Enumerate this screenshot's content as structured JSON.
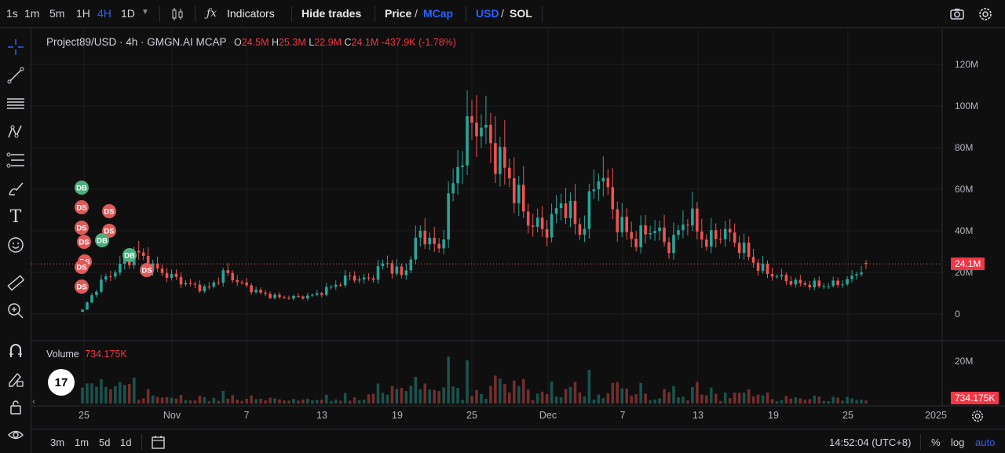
{
  "toolbar": {
    "intervals": [
      "1s",
      "1m",
      "5m",
      "1H",
      "4H",
      "1D"
    ],
    "active_interval": "4H",
    "indicators_label": "Indicators",
    "hide_trades_label": "Hide trades",
    "price_label": "Price",
    "mcap_label": "MCap",
    "usd_label": "USD",
    "sol_label": "SOL",
    "slash": "/",
    "accent_color": "#2962ff"
  },
  "legend": {
    "symbol": "Project89/USD · 4h · GMGN.AI MCAP",
    "o_label": "O",
    "o_value": "24.5M",
    "h_label": "H",
    "h_value": "25.3M",
    "l_label": "L",
    "l_value": "22.9M",
    "c_label": "C",
    "c_value": "24.1M",
    "change": "-437.9K (-1.78%)"
  },
  "volume_legend": {
    "label": "Volume",
    "value": "734.175K"
  },
  "price_axis": {
    "ticks": [
      "120M",
      "100M",
      "80M",
      "60M",
      "40M",
      "20M",
      "0"
    ],
    "last_price_label": "24.1M"
  },
  "volume_axis": {
    "ticks": [
      "20M"
    ],
    "last_volume_label": "734.175K"
  },
  "time_axis": {
    "labels": [
      "25",
      "Nov",
      "7",
      "13",
      "19",
      "25",
      "Dec",
      "7",
      "13",
      "19",
      "25",
      "2025"
    ]
  },
  "bottom_bar": {
    "ranges": [
      "3m",
      "1m",
      "5d",
      "1d"
    ],
    "clock": "14:52:04 (UTC+8)",
    "percent_label": "%",
    "log_label": "log",
    "auto_label": "auto"
  },
  "trade_markers": [
    {
      "label": "DB",
      "color": "#4caf7d"
    },
    {
      "label": "DS",
      "color": "#e05a5a"
    },
    {
      "label": "DS",
      "color": "#e05a5a"
    },
    {
      "label": "DS",
      "color": "#e05a5a"
    },
    {
      "label": "DS",
      "color": "#e05a5a"
    },
    {
      "label": "DS",
      "color": "#e05a5a"
    },
    {
      "label": "DS",
      "color": "#e05a5a"
    },
    {
      "label": "DS",
      "color": "#e05a5a"
    },
    {
      "label": "DS",
      "color": "#e05a5a"
    },
    {
      "label": "DB",
      "color": "#4caf7d"
    },
    {
      "label": "DB",
      "color": "#4caf7d"
    },
    {
      "label": "DS",
      "color": "#e05a5a"
    }
  ],
  "colors": {
    "up": "#26a69a",
    "down": "#ef5350",
    "background": "#0f0f0f",
    "grid": "#1e1e1e"
  },
  "chart_data": {
    "type": "candlestick",
    "title": "Project89/USD · 4h · GMGN.AI MCAP",
    "ylabel": "",
    "ylim": [
      0,
      125
    ],
    "y_unit": "M",
    "y_ticks": [
      0,
      20,
      40,
      60,
      80,
      100,
      120
    ],
    "x_tick_labels": [
      "25",
      "Nov",
      "7",
      "13",
      "19",
      "25",
      "Dec",
      "7",
      "13",
      "19",
      "25",
      "2025"
    ],
    "last_close": 24.1,
    "close_path": [
      {
        "x": "Oct 25",
        "close": 2
      },
      {
        "x": "Oct 25",
        "close": 15
      },
      {
        "x": "Oct 26",
        "close": 22
      },
      {
        "x": "Oct 27",
        "close": 30
      },
      {
        "x": "Oct 27",
        "close": 22
      },
      {
        "x": "Oct 28",
        "close": 18
      },
      {
        "x": "Oct 29",
        "close": 14
      },
      {
        "x": "Oct 30",
        "close": 12
      },
      {
        "x": "Nov 1",
        "close": 20
      },
      {
        "x": "Nov 2",
        "close": 14
      },
      {
        "x": "Nov 4",
        "close": 10
      },
      {
        "x": "Nov 6",
        "close": 8
      },
      {
        "x": "Nov 8",
        "close": 8
      },
      {
        "x": "Nov 10",
        "close": 9
      },
      {
        "x": "Nov 12",
        "close": 13
      },
      {
        "x": "Nov 13",
        "close": 18
      },
      {
        "x": "Nov 15",
        "close": 16
      },
      {
        "x": "Nov 17",
        "close": 25
      },
      {
        "x": "Nov 19",
        "close": 18
      },
      {
        "x": "Nov 20",
        "close": 40
      },
      {
        "x": "Nov 21",
        "close": 30
      },
      {
        "x": "Nov 21",
        "close": 70
      },
      {
        "x": "Nov 22",
        "close": 95
      },
      {
        "x": "Nov 23",
        "close": 80
      },
      {
        "x": "Nov 24",
        "close": 65
      },
      {
        "x": "Nov 26",
        "close": 45
      },
      {
        "x": "Nov 27",
        "close": 40
      },
      {
        "x": "Nov 28",
        "close": 55
      },
      {
        "x": "Nov 29",
        "close": 38
      },
      {
        "x": "Dec 1",
        "close": 70
      },
      {
        "x": "Dec 2",
        "close": 45
      },
      {
        "x": "Dec 4",
        "close": 35
      },
      {
        "x": "Dec 6",
        "close": 42
      },
      {
        "x": "Dec 7",
        "close": 32
      },
      {
        "x": "Dec 9",
        "close": 48
      },
      {
        "x": "Dec 10",
        "close": 34
      },
      {
        "x": "Dec 12",
        "close": 40
      },
      {
        "x": "Dec 14",
        "close": 32
      },
      {
        "x": "Dec 16",
        "close": 22
      },
      {
        "x": "Dec 18",
        "close": 18
      },
      {
        "x": "Dec 20",
        "close": 15
      },
      {
        "x": "Dec 22",
        "close": 14
      },
      {
        "x": "Dec 24",
        "close": 14
      },
      {
        "x": "Dec 26",
        "close": 16
      },
      {
        "x": "Dec 27",
        "close": 24.1
      }
    ],
    "visible_ohlc": {
      "open": 24.5,
      "high": 25.3,
      "low": 22.9,
      "close": 24.1,
      "change": "-437.9K (-1.78%)"
    },
    "legend_position": "top-left"
  }
}
